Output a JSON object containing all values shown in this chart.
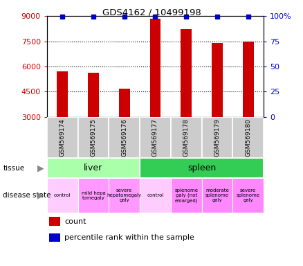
{
  "title": "GDS4162 / 10499198",
  "samples": [
    "GSM569174",
    "GSM569175",
    "GSM569176",
    "GSM569177",
    "GSM569178",
    "GSM569179",
    "GSM569180"
  ],
  "counts": [
    5700,
    5630,
    4700,
    8820,
    8200,
    7380,
    7480
  ],
  "percentile_ranks": [
    99,
    99,
    99,
    99,
    99,
    99,
    99
  ],
  "ylim_left": [
    3000,
    9000
  ],
  "ylim_right": [
    0,
    100
  ],
  "yticks_left": [
    3000,
    4500,
    6000,
    7500,
    9000
  ],
  "yticks_right": [
    0,
    25,
    50,
    75,
    100
  ],
  "bar_color": "#cc0000",
  "percentile_color": "#0000cc",
  "tissue_groups": [
    {
      "label": "liver",
      "start": 0,
      "end": 3,
      "color": "#aaffaa"
    },
    {
      "label": "spleen",
      "start": 3,
      "end": 7,
      "color": "#33cc55"
    }
  ],
  "disease_states": [
    {
      "label": "control",
      "start": 0,
      "end": 1,
      "color": "#ffccff"
    },
    {
      "label": "mild hepa\ntomegaly",
      "start": 1,
      "end": 2,
      "color": "#ff99ff"
    },
    {
      "label": "severe\nhepatomegaly\ngaly",
      "start": 2,
      "end": 3,
      "color": "#ff99ff"
    },
    {
      "label": "control",
      "start": 3,
      "end": 4,
      "color": "#ffccff"
    },
    {
      "label": "splenome\ngaly (not\nenlarged)",
      "start": 4,
      "end": 5,
      "color": "#ff88ff"
    },
    {
      "label": "moderate\nsplenome\ngaly",
      "start": 5,
      "end": 6,
      "color": "#ff88ff"
    },
    {
      "label": "severe\nsplenome\ngaly",
      "start": 6,
      "end": 7,
      "color": "#ff88ff"
    }
  ],
  "tick_label_color_left": "#cc0000",
  "tick_label_color_right": "#0000cc",
  "bar_width": 0.35,
  "fig_width": 4.38,
  "fig_height": 3.84,
  "dpi": 100
}
